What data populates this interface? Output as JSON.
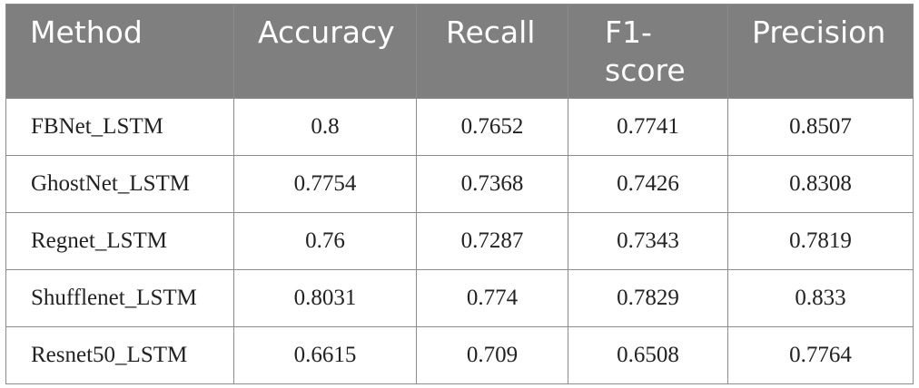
{
  "table": {
    "headers": [
      "Method",
      "Accuracy",
      "Recall",
      "F1-\nscore",
      "Precision"
    ],
    "rows": [
      [
        "FBNet_LSTM",
        "0.8",
        "0.7652",
        "0.7741",
        "0.8507"
      ],
      [
        "GhostNet_LSTM",
        "0.7754",
        "0.7368",
        "0.7426",
        "0.8308"
      ],
      [
        "Regnet_LSTM",
        "0.76",
        "0.7287",
        "0.7343",
        "0.7819"
      ],
      [
        "Shufflenet_LSTM",
        "0.8031",
        "0.774",
        "0.7829",
        "0.833"
      ],
      [
        "Resnet50_LSTM",
        "0.6615",
        "0.709",
        "0.6508",
        "0.7764"
      ]
    ]
  },
  "colors": {
    "header_background": "#7f7f7f",
    "header_text": "#ffffff",
    "border": "#8c8c8c",
    "body_text": "#222222"
  }
}
